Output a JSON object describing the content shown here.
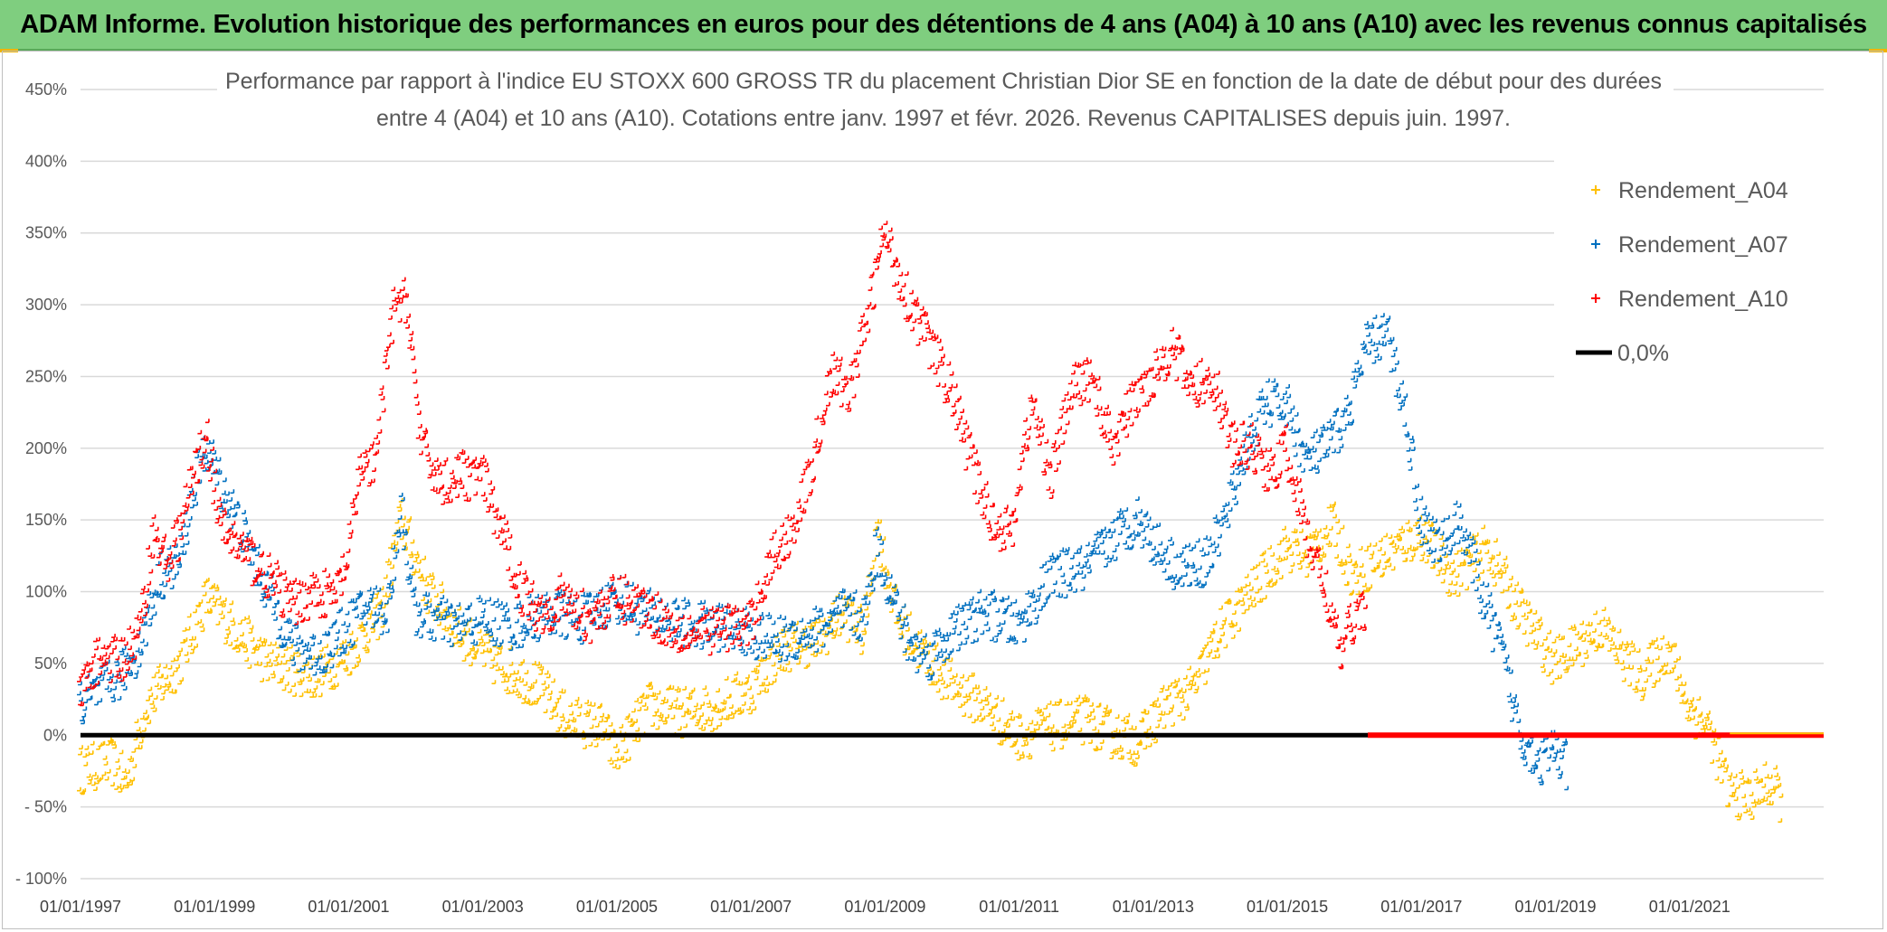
{
  "banner": {
    "title": "ADAM Informe. Evolution historique des performances en euros pour des détentions de 4 ans (A04) à 10 ans (A10) avec les revenus connus capitalisés"
  },
  "chart_data": {
    "type": "scatter",
    "title_line1": "Performance par rapport à l'indice EU STOXX 600 GROSS TR  du placement Christian Dior SE en fonction de la date de début pour des durées",
    "title_line2": "entre 4 (A04) et 10 ans (A10). Cotations entre janv. 1997 et févr. 2026. Revenus CAPITALISES depuis juin. 1997.",
    "xlabel": "",
    "ylabel": "",
    "xlim": [
      1997.0,
      2023.0
    ],
    "ylim": [
      -100,
      450
    ],
    "x_ticks": [
      {
        "value": 1997,
        "label": "01/01/1997"
      },
      {
        "value": 1999,
        "label": "01/01/1999"
      },
      {
        "value": 2001,
        "label": "01/01/2001"
      },
      {
        "value": 2003,
        "label": "01/01/2003"
      },
      {
        "value": 2005,
        "label": "01/01/2005"
      },
      {
        "value": 2007,
        "label": "01/01/2007"
      },
      {
        "value": 2009,
        "label": "01/01/2009"
      },
      {
        "value": 2011,
        "label": "01/01/2011"
      },
      {
        "value": 2013,
        "label": "01/01/2013"
      },
      {
        "value": 2015,
        "label": "01/01/2015"
      },
      {
        "value": 2017,
        "label": "01/01/2017"
      },
      {
        "value": 2019,
        "label": "01/01/2019"
      },
      {
        "value": 2021,
        "label": "01/01/2021"
      }
    ],
    "y_ticks": [
      {
        "value": 450,
        "label": "450%"
      },
      {
        "value": 400,
        "label": "400%"
      },
      {
        "value": 350,
        "label": "350%"
      },
      {
        "value": 300,
        "label": "300%"
      },
      {
        "value": 250,
        "label": "250%"
      },
      {
        "value": 200,
        "label": "200%"
      },
      {
        "value": 150,
        "label": "150%"
      },
      {
        "value": 100,
        "label": "100%"
      },
      {
        "value": 50,
        "label": "50%"
      },
      {
        "value": 0,
        "label": "0%"
      },
      {
        "value": -50,
        "label": "- 50%"
      },
      {
        "value": -100,
        "label": "- 100%"
      }
    ],
    "legend_position": "top-right",
    "grid": "horizontal",
    "series": [
      {
        "name": "Rendement_A04",
        "color": "#ffc000",
        "marker": "plus",
        "x": [
          1997.0,
          1997.5,
          1997.7,
          1998.0,
          1998.5,
          1998.9,
          1999.3,
          1999.8,
          2000.5,
          2001.0,
          2001.5,
          2001.8,
          2002.2,
          2002.7,
          2003.2,
          2003.8,
          2004.3,
          2004.8,
          2005.0,
          2005.5,
          2006.0,
          2006.5,
          2007.0,
          2007.5,
          2008.0,
          2008.4,
          2008.7,
          2008.9,
          2009.2,
          2009.6,
          2010.0,
          2010.5,
          2011.0,
          2011.5,
          2012.0,
          2012.4,
          2012.8,
          2013.2,
          2013.6,
          2014.0,
          2014.5,
          2015.0,
          2015.3,
          2015.7,
          2016.0,
          2016.5,
          2017.0,
          2017.5,
          2018.0,
          2018.5,
          2019.0,
          2019.3,
          2019.7,
          2020.0,
          2020.3,
          2020.7,
          2021.0,
          2021.3,
          2021.6,
          2021.9,
          2022.2,
          2022.4
        ],
        "y": [
          -25,
          -20,
          -35,
          20,
          50,
          95,
          75,
          50,
          40,
          55,
          85,
          150,
          100,
          70,
          50,
          35,
          10,
          5,
          -15,
          20,
          15,
          20,
          30,
          60,
          65,
          85,
          70,
          145,
          80,
          55,
          35,
          20,
          -2,
          5,
          10,
          0,
          -5,
          20,
          30,
          70,
          100,
          130,
          125,
          145,
          110,
          125,
          140,
          110,
          130,
          85,
          50,
          60,
          75,
          55,
          40,
          60,
          20,
          5,
          -40,
          -45,
          -35,
          -45
        ]
      },
      {
        "name": "Rendement_A07",
        "color": "#0070c0",
        "marker": "plus",
        "x": [
          1997.0,
          1997.3,
          1997.6,
          1997.9,
          1998.2,
          1998.5,
          1998.7,
          1998.9,
          1999.1,
          1999.4,
          1999.8,
          2000.2,
          2000.6,
          2001.0,
          2001.3,
          2001.6,
          2001.8,
          2002.0,
          2002.3,
          2002.7,
          2003.0,
          2003.5,
          2004.0,
          2004.5,
          2005.0,
          2005.4,
          2005.8,
          2006.2,
          2006.6,
          2007.0,
          2007.4,
          2007.8,
          2008.1,
          2008.4,
          2008.7,
          2008.9,
          2009.1,
          2009.4,
          2009.7,
          2010.0,
          2010.5,
          2011.0,
          2011.5,
          2012.0,
          2012.5,
          2012.8,
          2013.1,
          2013.4,
          2013.8,
          2014.1,
          2014.4,
          2014.7,
          2015.0,
          2015.3,
          2015.6,
          2015.9,
          2016.2,
          2016.5,
          2016.8,
          2017.0,
          2017.3,
          2017.6,
          2017.9,
          2018.2,
          2018.5,
          2018.8,
          2019.0,
          2019.2
        ],
        "y": [
          20,
          30,
          40,
          60,
          110,
          120,
          170,
          200,
          175,
          145,
          100,
          60,
          55,
          75,
          90,
          85,
          160,
          85,
          80,
          75,
          80,
          75,
          85,
          80,
          95,
          85,
          80,
          75,
          75,
          70,
          65,
          70,
          75,
          85,
          80,
          130,
          100,
          60,
          55,
          70,
          85,
          75,
          110,
          115,
          140,
          150,
          130,
          115,
          120,
          150,
          200,
          230,
          230,
          190,
          200,
          220,
          270,
          280,
          220,
          150,
          130,
          150,
          100,
          60,
          0,
          -20,
          -10,
          -25
        ]
      },
      {
        "name": "Rendement_A10",
        "color": "#ff0000",
        "marker": "plus",
        "x": [
          1997.0,
          1997.3,
          1997.6,
          1997.9,
          1998.1,
          1998.3,
          1998.5,
          1998.7,
          1998.9,
          1999.1,
          1999.4,
          1999.8,
          2000.2,
          2000.5,
          2000.8,
          2001.0,
          2001.2,
          2001.4,
          2001.7,
          2001.9,
          2002.1,
          2002.4,
          2002.7,
          2003.0,
          2003.3,
          2003.6,
          2003.9,
          2004.2,
          2004.6,
          2005.0,
          2005.4,
          2005.8,
          2006.2,
          2006.6,
          2007.0,
          2007.3,
          2007.6,
          2007.9,
          2008.2,
          2008.5,
          2008.8,
          2009.0,
          2009.3,
          2009.7,
          2010.0,
          2010.3,
          2010.6,
          2010.9,
          2011.2,
          2011.5,
          2011.8,
          2012.1,
          2012.4,
          2012.7,
          2013.0,
          2013.3,
          2013.6,
          2013.9,
          2014.2,
          2014.5,
          2014.8,
          2015.0,
          2015.3,
          2015.6,
          2015.8,
          2016.0,
          2016.2
        ],
        "y": [
          25,
          55,
          50,
          70,
          140,
          120,
          140,
          180,
          210,
          145,
          130,
          110,
          90,
          100,
          95,
          120,
          190,
          185,
          300,
          300,
          200,
          175,
          180,
          180,
          140,
          100,
          85,
          95,
          80,
          95,
          90,
          75,
          70,
          75,
          75,
          120,
          140,
          180,
          250,
          240,
          300,
          350,
          310,
          270,
          240,
          190,
          150,
          140,
          230,
          180,
          240,
          250,
          200,
          230,
          250,
          270,
          240,
          250,
          200,
          200,
          180,
          200,
          140,
          100,
          55,
          80,
          90
        ]
      }
    ],
    "zero_line": {
      "name": "0,0%",
      "y": 0,
      "color": "#000000"
    },
    "a10_zero_segment": {
      "x_start": 2016.2,
      "x_end": 2023.0,
      "y": 0,
      "color": "#ff0000"
    },
    "a04_zero_segment": {
      "x_start": 2021.6,
      "x_end": 2023.0,
      "y": 0,
      "color": "#ffc000"
    }
  }
}
